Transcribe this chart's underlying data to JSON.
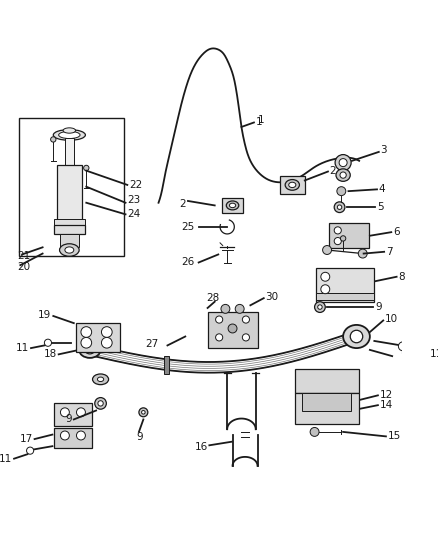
{
  "title": "",
  "bg_color": "#ffffff",
  "line_color": "#1a1a1a",
  "label_color": "#1a1a1a",
  "figsize": [
    4.38,
    5.33
  ],
  "dpi": 100,
  "font_size": 7.0
}
